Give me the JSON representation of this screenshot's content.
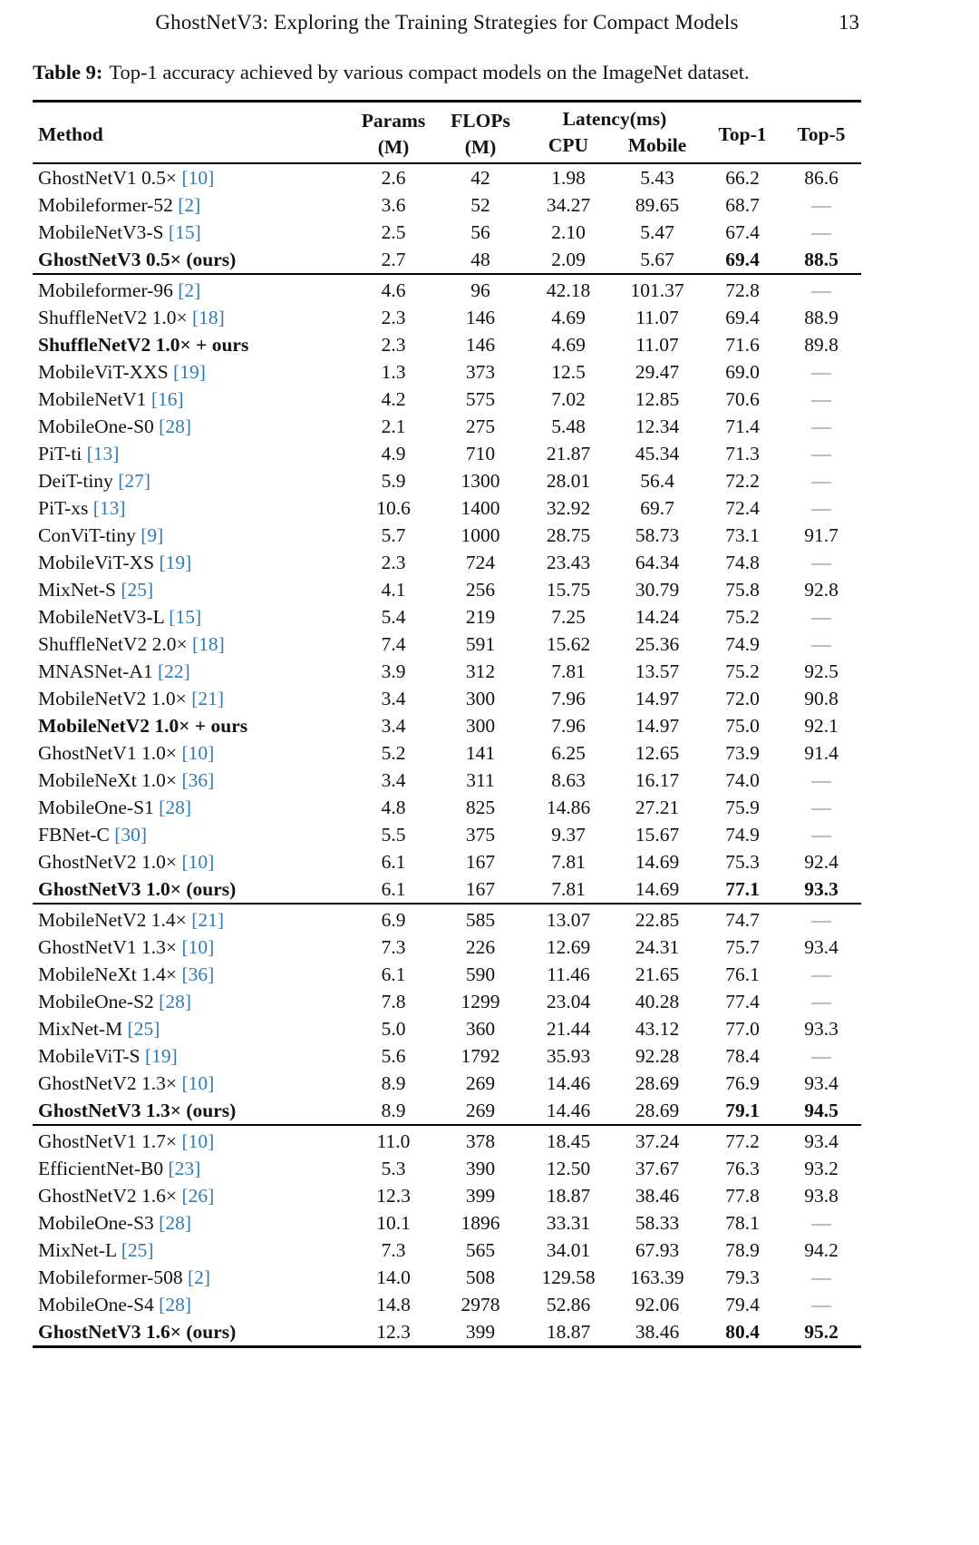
{
  "colors": {
    "citation": "#2e7bb8",
    "text": "#121212",
    "dash": "#7d7d7d"
  },
  "page": {
    "running_title": "GhostNetV3: Exploring the Training Strategies for Compact Models",
    "page_number": "13"
  },
  "caption": {
    "label": "Table 9:",
    "text": "Top-1 accuracy achieved by various compact models on the ImageNet dataset."
  },
  "table": {
    "headers": {
      "method": "Method",
      "params": [
        "Params",
        "(M)"
      ],
      "flops": [
        "FLOPs",
        "(M)"
      ],
      "latency": "Latency(ms)",
      "cpu": "CPU",
      "mobile": "Mobile",
      "top1": "Top-1",
      "top5": "Top-5"
    },
    "groups": [
      {
        "rows": [
          {
            "method": "GhostNetV1 0.5×",
            "cite": "10",
            "params": "2.6",
            "flops": "42",
            "cpu": "1.98",
            "mobile": "5.43",
            "top1": "66.2",
            "top5": "86.6"
          },
          {
            "method": "Mobileformer-52",
            "cite": "2",
            "params": "3.6",
            "flops": "52",
            "cpu": "34.27",
            "mobile": "89.65",
            "top1": "68.7",
            "top5": "—"
          },
          {
            "method": "MobileNetV3-S",
            "cite": "15",
            "params": "2.5",
            "flops": "56",
            "cpu": "2.10",
            "mobile": "5.47",
            "top1": "67.4",
            "top5": "—"
          },
          {
            "method": "GhostNetV3 0.5× (ours)",
            "params": "2.7",
            "flops": "48",
            "cpu": "2.09",
            "mobile": "5.67",
            "top1": "69.4",
            "top5": "88.5",
            "bold_method": true,
            "bold_top": true
          }
        ]
      },
      {
        "rows": [
          {
            "method": "Mobileformer-96",
            "cite": "2",
            "params": "4.6",
            "flops": "96",
            "cpu": "42.18",
            "mobile": "101.37",
            "top1": "72.8",
            "top5": "—"
          },
          {
            "method": "ShuffleNetV2 1.0×",
            "cite": "18",
            "params": "2.3",
            "flops": "146",
            "cpu": "4.69",
            "mobile": "11.07",
            "top1": "69.4",
            "top5": "88.9"
          },
          {
            "method": "ShuffleNetV2 1.0× + ours",
            "params": "2.3",
            "flops": "146",
            "cpu": "4.69",
            "mobile": "11.07",
            "top1": "71.6",
            "top5": "89.8",
            "bold_method": true
          },
          {
            "method": "MobileViT-XXS",
            "cite": "19",
            "params": "1.3",
            "flops": "373",
            "cpu": "12.5",
            "mobile": "29.47",
            "top1": "69.0",
            "top5": "—"
          },
          {
            "method": "MobileNetV1",
            "cite": "16",
            "params": "4.2",
            "flops": "575",
            "cpu": "7.02",
            "mobile": "12.85",
            "top1": "70.6",
            "top5": "—"
          },
          {
            "method": "MobileOne-S0",
            "cite": "28",
            "params": "2.1",
            "flops": "275",
            "cpu": "5.48",
            "mobile": "12.34",
            "top1": "71.4",
            "top5": "—"
          },
          {
            "method": "PiT-ti",
            "cite": "13",
            "params": "4.9",
            "flops": "710",
            "cpu": "21.87",
            "mobile": "45.34",
            "top1": "71.3",
            "top5": "—"
          },
          {
            "method": "DeiT-tiny",
            "cite": "27",
            "params": "5.9",
            "flops": "1300",
            "cpu": "28.01",
            "mobile": "56.4",
            "top1": "72.2",
            "top5": "—"
          },
          {
            "method": "PiT-xs",
            "cite": "13",
            "params": "10.6",
            "flops": "1400",
            "cpu": "32.92",
            "mobile": "69.7",
            "top1": "72.4",
            "top5": "—"
          },
          {
            "method": "ConViT-tiny",
            "cite": "9",
            "params": "5.7",
            "flops": "1000",
            "cpu": "28.75",
            "mobile": "58.73",
            "top1": "73.1",
            "top5": "91.7"
          },
          {
            "method": "MobileViT-XS",
            "cite": "19",
            "params": "2.3",
            "flops": "724",
            "cpu": "23.43",
            "mobile": "64.34",
            "top1": "74.8",
            "top5": "—"
          },
          {
            "method": "MixNet-S",
            "cite": "25",
            "params": "4.1",
            "flops": "256",
            "cpu": "15.75",
            "mobile": "30.79",
            "top1": "75.8",
            "top5": "92.8"
          },
          {
            "method": "MobileNetV3-L",
            "cite": "15",
            "params": "5.4",
            "flops": "219",
            "cpu": "7.25",
            "mobile": "14.24",
            "top1": "75.2",
            "top5": "—"
          },
          {
            "method": "ShuffleNetV2 2.0×",
            "cite": "18",
            "params": "7.4",
            "flops": "591",
            "cpu": "15.62",
            "mobile": "25.36",
            "top1": "74.9",
            "top5": "—"
          },
          {
            "method": "MNASNet-A1",
            "cite": "22",
            "params": "3.9",
            "flops": "312",
            "cpu": "7.81",
            "mobile": "13.57",
            "top1": "75.2",
            "top5": "92.5"
          },
          {
            "method": "MobileNetV2 1.0×",
            "cite": "21",
            "params": "3.4",
            "flops": "300",
            "cpu": "7.96",
            "mobile": "14.97",
            "top1": "72.0",
            "top5": "90.8"
          },
          {
            "method": "MobileNetV2 1.0× + ours",
            "params": "3.4",
            "flops": "300",
            "cpu": "7.96",
            "mobile": "14.97",
            "top1": "75.0",
            "top5": "92.1",
            "bold_method": true
          },
          {
            "method": "GhostNetV1 1.0×",
            "cite": "10",
            "params": "5.2",
            "flops": "141",
            "cpu": "6.25",
            "mobile": "12.65",
            "top1": "73.9",
            "top5": "91.4"
          },
          {
            "method": "MobileNeXt 1.0×",
            "cite": "36",
            "params": "3.4",
            "flops": "311",
            "cpu": "8.63",
            "mobile": "16.17",
            "top1": "74.0",
            "top5": "—"
          },
          {
            "method": "MobileOne-S1",
            "cite": "28",
            "params": "4.8",
            "flops": "825",
            "cpu": "14.86",
            "mobile": "27.21",
            "top1": "75.9",
            "top5": "—"
          },
          {
            "method": "FBNet-C",
            "cite": "30",
            "params": "5.5",
            "flops": "375",
            "cpu": "9.37",
            "mobile": "15.67",
            "top1": "74.9",
            "top5": "—"
          },
          {
            "method": "GhostNetV2 1.0×",
            "cite": "10",
            "params": "6.1",
            "flops": "167",
            "cpu": "7.81",
            "mobile": "14.69",
            "top1": "75.3",
            "top5": "92.4"
          },
          {
            "method": "GhostNetV3 1.0× (ours)",
            "params": "6.1",
            "flops": "167",
            "cpu": "7.81",
            "mobile": "14.69",
            "top1": "77.1",
            "top5": "93.3",
            "bold_method": true,
            "bold_top": true
          }
        ]
      },
      {
        "rows": [
          {
            "method": "MobileNetV2 1.4×",
            "cite": "21",
            "params": "6.9",
            "flops": "585",
            "cpu": "13.07",
            "mobile": "22.85",
            "top1": "74.7",
            "top5": "—"
          },
          {
            "method": "GhostNetV1 1.3×",
            "cite": "10",
            "params": "7.3",
            "flops": "226",
            "cpu": "12.69",
            "mobile": "24.31",
            "top1": "75.7",
            "top5": "93.4"
          },
          {
            "method": "MobileNeXt 1.4×",
            "cite": "36",
            "params": "6.1",
            "flops": "590",
            "cpu": "11.46",
            "mobile": "21.65",
            "top1": "76.1",
            "top5": "—"
          },
          {
            "method": "MobileOne-S2",
            "cite": "28",
            "params": "7.8",
            "flops": "1299",
            "cpu": "23.04",
            "mobile": "40.28",
            "top1": "77.4",
            "top5": "—"
          },
          {
            "method": "MixNet-M",
            "cite": "25",
            "params": "5.0",
            "flops": "360",
            "cpu": "21.44",
            "mobile": "43.12",
            "top1": "77.0",
            "top5": "93.3"
          },
          {
            "method": "MobileViT-S",
            "cite": "19",
            "params": "5.6",
            "flops": "1792",
            "cpu": "35.93",
            "mobile": "92.28",
            "top1": "78.4",
            "top5": "—"
          },
          {
            "method": "GhostNetV2 1.3×",
            "cite": "10",
            "params": "8.9",
            "flops": "269",
            "cpu": "14.46",
            "mobile": "28.69",
            "top1": "76.9",
            "top5": "93.4"
          },
          {
            "method": "GhostNetV3 1.3× (ours)",
            "params": "8.9",
            "flops": "269",
            "cpu": "14.46",
            "mobile": "28.69",
            "top1": "79.1",
            "top5": "94.5",
            "bold_method": true,
            "bold_top": true
          }
        ]
      },
      {
        "rows": [
          {
            "method": "GhostNetV1 1.7×",
            "cite": "10",
            "params": "11.0",
            "flops": "378",
            "cpu": "18.45",
            "mobile": "37.24",
            "top1": "77.2",
            "top5": "93.4"
          },
          {
            "method": "EfficientNet-B0",
            "cite": "23",
            "params": "5.3",
            "flops": "390",
            "cpu": "12.50",
            "mobile": "37.67",
            "top1": "76.3",
            "top5": "93.2"
          },
          {
            "method": "GhostNetV2 1.6×",
            "cite": "26",
            "params": "12.3",
            "flops": "399",
            "cpu": "18.87",
            "mobile": "38.46",
            "top1": "77.8",
            "top5": "93.8"
          },
          {
            "method": "MobileOne-S3",
            "cite": "28",
            "params": "10.1",
            "flops": "1896",
            "cpu": "33.31",
            "mobile": "58.33",
            "top1": "78.1",
            "top5": "—"
          },
          {
            "method": "MixNet-L",
            "cite": "25",
            "params": "7.3",
            "flops": "565",
            "cpu": "34.01",
            "mobile": "67.93",
            "top1": "78.9",
            "top5": "94.2"
          },
          {
            "method": "Mobileformer-508",
            "cite": "2",
            "params": "14.0",
            "flops": "508",
            "cpu": "129.58",
            "mobile": "163.39",
            "top1": "79.3",
            "top5": "—"
          },
          {
            "method": "MobileOne-S4",
            "cite": "28",
            "params": "14.8",
            "flops": "2978",
            "cpu": "52.86",
            "mobile": "92.06",
            "top1": "79.4",
            "top5": "—"
          },
          {
            "method": "GhostNetV3 1.6× (ours)",
            "params": "12.3",
            "flops": "399",
            "cpu": "18.87",
            "mobile": "38.46",
            "top1": "80.4",
            "top5": "95.2",
            "bold_method": true,
            "bold_top": true
          }
        ]
      }
    ]
  }
}
